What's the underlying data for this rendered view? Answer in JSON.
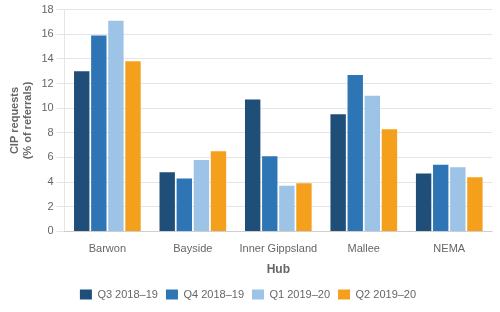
{
  "chart_data": {
    "type": "bar",
    "categories": [
      "Barwon",
      "Bayside",
      "Inner Gippsland",
      "Mallee",
      "NEMA"
    ],
    "series": [
      {
        "name": "Q3 2018–19",
        "color": "#1f4e79",
        "values": [
          13.0,
          4.8,
          10.7,
          9.5,
          4.7
        ]
      },
      {
        "name": "Q4 2018–19",
        "color": "#2e75b6",
        "values": [
          15.9,
          4.3,
          6.1,
          12.7,
          5.4
        ]
      },
      {
        "name": "Q1 2019–20",
        "color": "#9dc3e6",
        "values": [
          17.1,
          5.8,
          3.7,
          11.0,
          5.2
        ]
      },
      {
        "name": "Q2 2019–20",
        "color": "#f4a01c",
        "values": [
          13.8,
          6.5,
          3.9,
          8.3,
          4.4
        ]
      }
    ],
    "xlabel": "Hub",
    "ylabel": [
      "CIP requests",
      "(% of referrals)"
    ],
    "ylim": [
      0,
      18
    ],
    "yticks": [
      0,
      2,
      4,
      6,
      8,
      10,
      12,
      14,
      16,
      18
    ],
    "grid": true,
    "legend": "bottom"
  }
}
